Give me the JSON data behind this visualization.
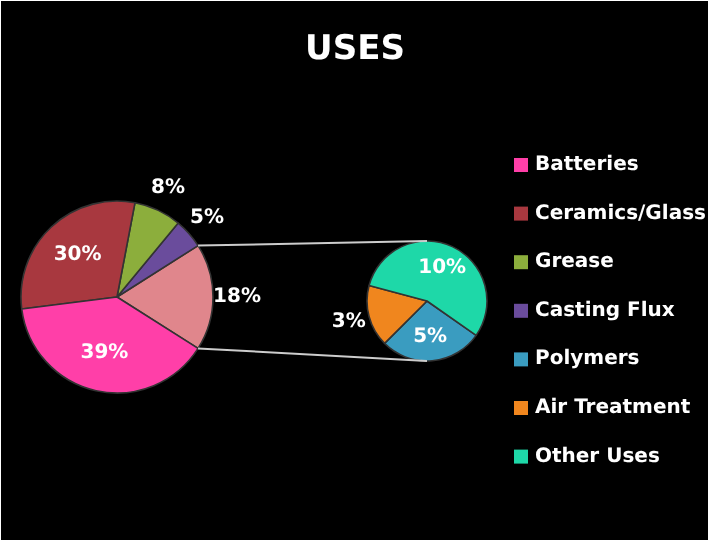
{
  "chart_data": [
    {
      "type": "pie",
      "title": "USES",
      "categories": [
        "Batteries",
        "Ceramics/Glass",
        "Grease",
        "Casting Flux",
        null
      ],
      "values": [
        39,
        30,
        8,
        5,
        18
      ],
      "value_labels": [
        "39%",
        "30%",
        "8%",
        "5%",
        "18%"
      ],
      "colors": [
        "#ff3fa8",
        "#a8383f",
        "#8cae3c",
        "#6a4c9c",
        "#e0868c"
      ],
      "legend": "right"
    },
    {
      "type": "pie",
      "categories": [
        "Polymers",
        "Air Treatment",
        "Other Uses"
      ],
      "values": [
        5,
        3,
        10
      ],
      "value_labels": [
        "5%",
        "3%",
        "10%"
      ],
      "colors": [
        "#3a9cc0",
        "#f0861e",
        "#1ed8a8"
      ],
      "legend": "right"
    }
  ]
}
